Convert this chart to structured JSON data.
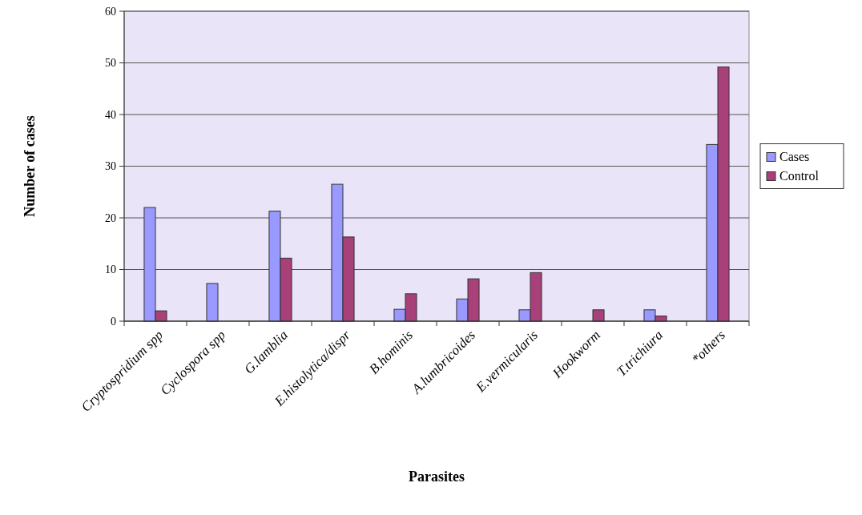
{
  "chart_data": {
    "type": "bar",
    "xlabel": "Parasites",
    "ylabel": "Number of cases",
    "categories": [
      "Cryptospridium spp",
      "Cyclospora spp",
      "G.lamblia",
      "E.histolytica/dispr",
      "B.hominis",
      "A.lumbricoides",
      "E.vermicularis",
      "Hookworm",
      "T.trichiura",
      "*others"
    ],
    "series": [
      {
        "name": "Cases",
        "color": "#9999ff",
        "values": [
          22,
          7.3,
          21.3,
          26.5,
          2.3,
          4.3,
          2.2,
          0,
          2.2,
          34.2
        ]
      },
      {
        "name": "Control",
        "color": "#a8407a",
        "values": [
          2,
          0,
          12.2,
          16.3,
          5.3,
          8.2,
          9.4,
          2.2,
          1,
          49.2
        ]
      }
    ],
    "ylim": [
      0,
      60
    ],
    "yticks": [
      0,
      10,
      20,
      30,
      40,
      50,
      60
    ],
    "grid": "y",
    "legend": "right"
  }
}
